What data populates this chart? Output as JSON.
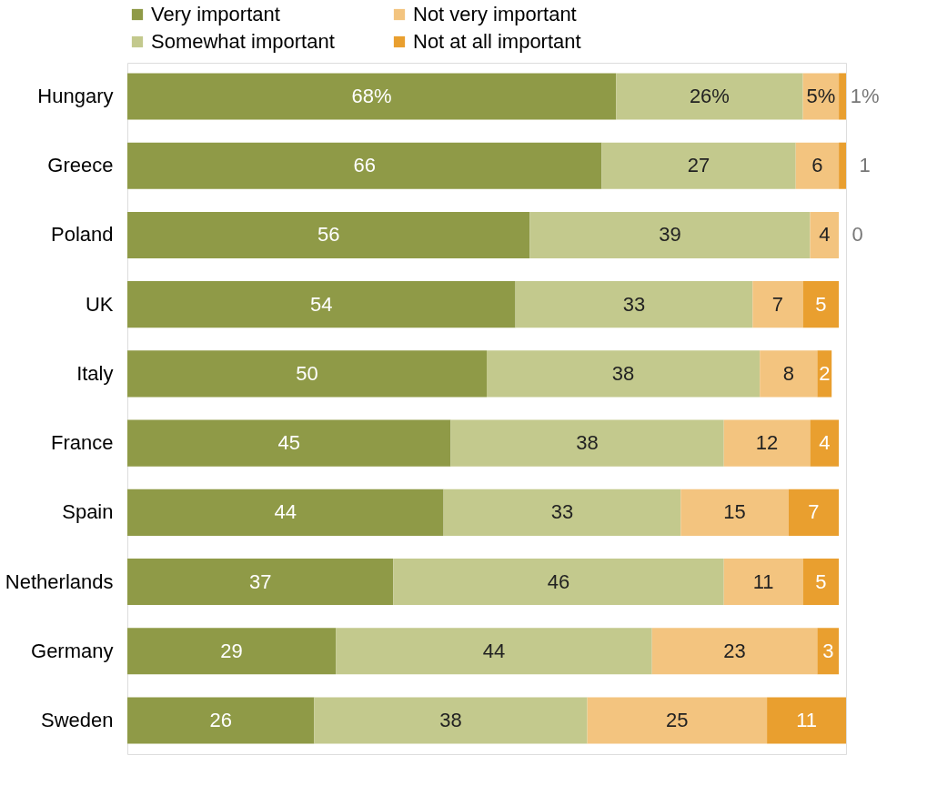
{
  "chart_data": {
    "type": "bar",
    "orientation": "horizontal",
    "stacked": true,
    "legend": "top",
    "categories": [
      "Hungary",
      "Greece",
      "Poland",
      "UK",
      "Italy",
      "France",
      "Spain",
      "Netherlands",
      "Germany",
      "Sweden"
    ],
    "series": [
      {
        "name": "Very important",
        "color": "#8f9a47",
        "values": [
          68,
          66,
          56,
          54,
          50,
          45,
          44,
          37,
          29,
          26
        ],
        "value_labels": [
          "68%",
          "66",
          "56",
          "54",
          "50",
          "45",
          "44",
          "37",
          "29",
          "26"
        ]
      },
      {
        "name": "Somewhat important",
        "color": "#c3c98d",
        "values": [
          26,
          27,
          39,
          33,
          38,
          38,
          33,
          46,
          44,
          38
        ],
        "value_labels": [
          "26%",
          "27",
          "39",
          "33",
          "38",
          "38",
          "33",
          "46",
          "44",
          "38"
        ]
      },
      {
        "name": "Not very important",
        "color": "#f3c47f",
        "values": [
          5,
          6,
          4,
          7,
          8,
          12,
          15,
          11,
          23,
          25
        ],
        "value_labels": [
          "5%",
          "6",
          "4",
          "7",
          "8",
          "12",
          "15",
          "11",
          "23",
          "25"
        ]
      },
      {
        "name": "Not at all important",
        "color": "#e99f2f",
        "values": [
          1,
          1,
          0,
          5,
          2,
          4,
          7,
          5,
          3,
          11
        ],
        "value_labels": [
          "1%",
          "1",
          "0",
          "5",
          "2",
          "4",
          "7",
          "5",
          "3",
          "11"
        ]
      }
    ]
  }
}
